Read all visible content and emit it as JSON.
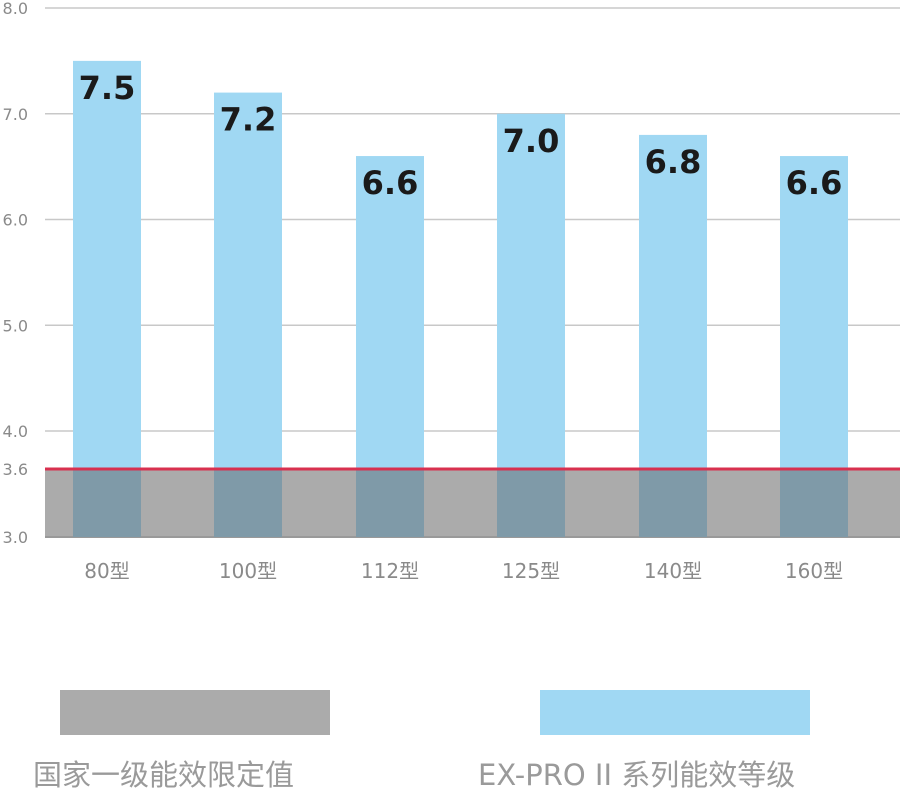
{
  "chart_data": {
    "type": "bar",
    "title": "",
    "xlabel": "",
    "ylabel": "",
    "ylim": [
      3.0,
      8.0
    ],
    "yticks": [
      "3.0",
      "3.6",
      "4.0",
      "5.0",
      "6.0",
      "7.0",
      "8.0"
    ],
    "categories": [
      "80型",
      "100型",
      "112型",
      "125型",
      "140型",
      "160型"
    ],
    "series": [
      {
        "name": "EX-PRO II 系列能效等级",
        "values": [
          7.5,
          7.2,
          6.6,
          7.0,
          6.8,
          6.6
        ],
        "value_labels": [
          "7.5",
          "7.2",
          "6.6",
          "7.0",
          "6.8",
          "6.6"
        ],
        "color": "#a0d8f3"
      }
    ],
    "reference": {
      "name": "国家一级能效限定值",
      "value": 3.6,
      "band_color": "#ababab",
      "line_color": "#d8304f"
    },
    "grid": true,
    "legend": {
      "placement": "bottom",
      "items": [
        "国家一级能效限定值",
        "EX-PRO II 系列能效等级"
      ]
    }
  }
}
